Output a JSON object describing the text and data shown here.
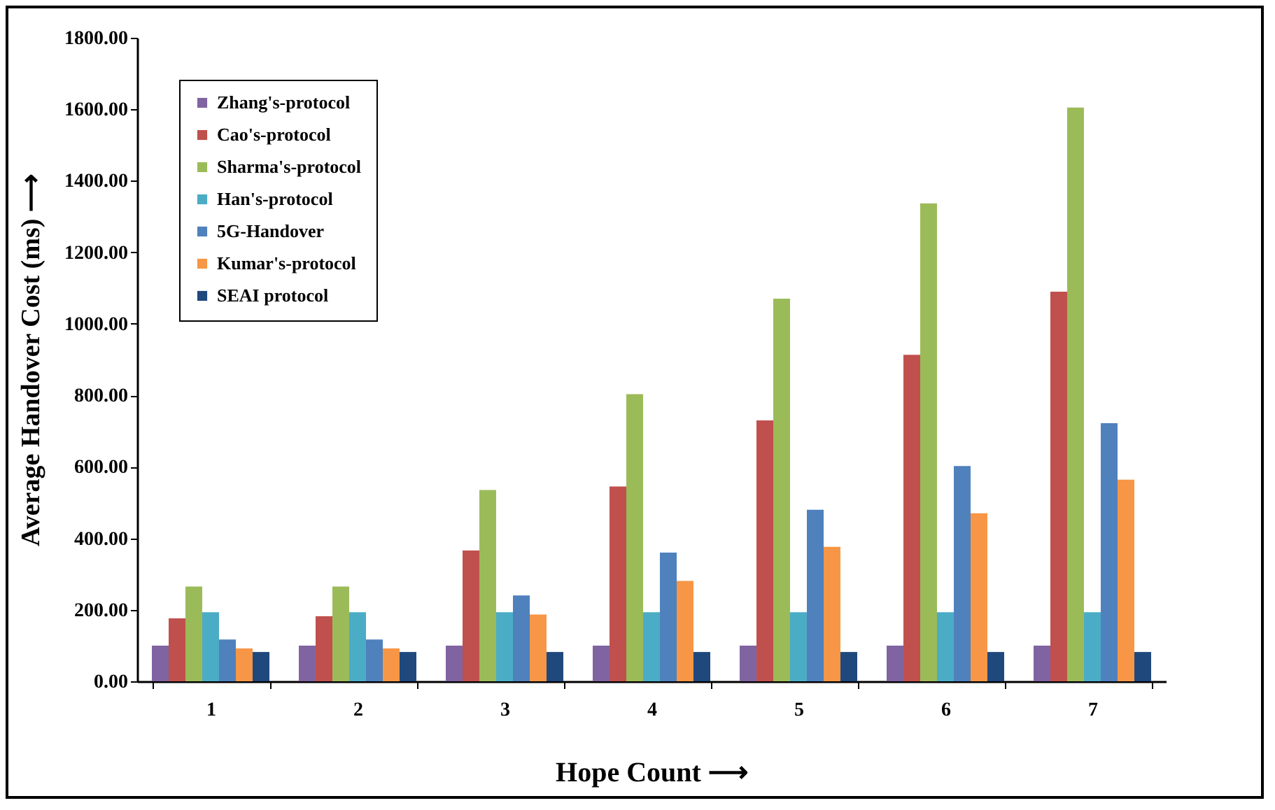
{
  "chart_data": {
    "type": "bar",
    "xlabel": "Hope Count ⟶",
    "ylabel": "Average Handover Cost (ms) ⟶",
    "categories": [
      "1",
      "2",
      "3",
      "4",
      "5",
      "6",
      "7"
    ],
    "series": [
      {
        "name": "Zhang's-protocol",
        "color": "#8064a2",
        "values": [
          100,
          100,
          100,
          100,
          100,
          100,
          100
        ]
      },
      {
        "name": "Cao's-protocol",
        "color": "#c0504d",
        "values": [
          176,
          182,
          366,
          545,
          730,
          913,
          1090
        ]
      },
      {
        "name": "Sharma's-protocol",
        "color": "#9bbb59",
        "values": [
          265,
          265,
          535,
          803,
          1070,
          1337,
          1605
        ]
      },
      {
        "name": "Han's-protocol",
        "color": "#4bacc6",
        "values": [
          193,
          193,
          193,
          193,
          193,
          193,
          193
        ]
      },
      {
        "name": "5G-Handover",
        "color": "#4f81bd",
        "values": [
          117,
          117,
          240,
          360,
          480,
          602,
          722
        ]
      },
      {
        "name": "Kumar's-protocol",
        "color": "#f79646",
        "values": [
          92,
          92,
          187,
          281,
          376,
          470,
          564
        ]
      },
      {
        "name": "SEAI protocol",
        "color": "#1f497d",
        "values": [
          82,
          82,
          82,
          82,
          82,
          82,
          82
        ]
      }
    ],
    "ylim": [
      0,
      1800
    ],
    "yticks": [
      {
        "value": 0,
        "label": "0.00"
      },
      {
        "value": 200,
        "label": "200.00"
      },
      {
        "value": 400,
        "label": "400.00"
      },
      {
        "value": 600,
        "label": "600.00"
      },
      {
        "value": 800,
        "label": "800.00"
      },
      {
        "value": 1000,
        "label": "1000.00"
      },
      {
        "value": 1200,
        "label": "1200.00"
      },
      {
        "value": 1400,
        "label": "1400.00"
      },
      {
        "value": 1600,
        "label": "1600.00"
      },
      {
        "value": 1800,
        "label": "1800.00"
      }
    ],
    "grid": false,
    "legend": "top left"
  }
}
